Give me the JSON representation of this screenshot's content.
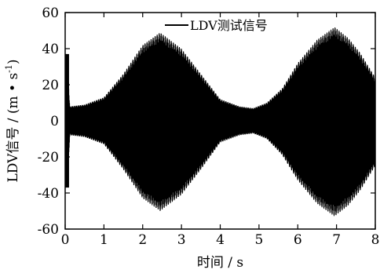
{
  "chart_data": {
    "type": "line",
    "title": "",
    "xlabel": "时间 / s",
    "ylabel_main": "LDV信号 / (m • s",
    "ylabel_sup": "-1",
    "ylabel_close": ")",
    "xlim": [
      0,
      8
    ],
    "ylim": [
      -60,
      60
    ],
    "x_ticks": [
      0,
      1,
      2,
      3,
      4,
      5,
      6,
      7,
      8
    ],
    "y_ticks": [
      -60,
      -40,
      -20,
      0,
      20,
      40,
      60
    ],
    "grid": false,
    "legend_position": "top-center",
    "series": [
      {
        "name": "LDV测试信号",
        "color": "#000000",
        "sampling": "dense oscillating signal; burst of amplitude ~37 on 0.00–0.10 s, then beat-modulated oscillation",
        "envelope_x": [
          0.0,
          0.05,
          0.12,
          0.5,
          1.0,
          1.5,
          2.0,
          2.45,
          3.0,
          3.5,
          4.0,
          4.5,
          4.85,
          5.2,
          5.6,
          6.0,
          6.5,
          6.95,
          7.3,
          7.6,
          8.0
        ],
        "envelope_max": [
          37,
          37,
          8,
          9,
          13,
          26,
          42,
          49,
          40,
          26,
          12,
          8,
          7,
          10,
          18,
          32,
          45,
          52,
          46,
          38,
          24
        ],
        "envelope_min": [
          -37,
          -37,
          -8,
          -9,
          -13,
          -27,
          -43,
          -50,
          -41,
          -27,
          -12,
          -8,
          -7,
          -10,
          -19,
          -33,
          -46,
          -53,
          -47,
          -39,
          -25
        ]
      }
    ]
  }
}
